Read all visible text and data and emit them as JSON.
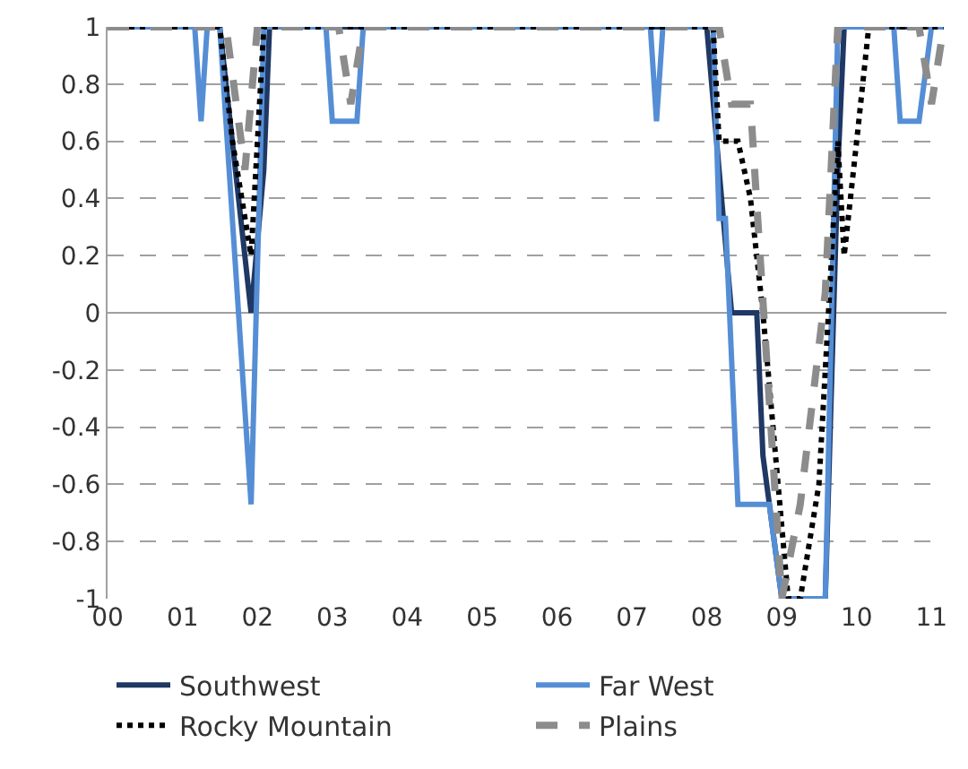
{
  "chart_data": {
    "type": "line",
    "xlim": [
      "2000-01-01",
      "2011-03-15"
    ],
    "xticks": [
      {
        "value": "2000-01",
        "label": "00"
      },
      {
        "value": "2001-01",
        "label": "01"
      },
      {
        "value": "2002-01",
        "label": "02"
      },
      {
        "value": "2003-01",
        "label": "03"
      },
      {
        "value": "2004-01",
        "label": "04"
      },
      {
        "value": "2005-01",
        "label": "05"
      },
      {
        "value": "2006-01",
        "label": "06"
      },
      {
        "value": "2007-01",
        "label": "07"
      },
      {
        "value": "2008-01",
        "label": "08"
      },
      {
        "value": "2009-01",
        "label": "09"
      },
      {
        "value": "2010-01",
        "label": "10"
      },
      {
        "value": "2011-01",
        "label": "11"
      }
    ],
    "ylim": [
      -1,
      1
    ],
    "yticks": [
      -1,
      -0.8,
      -0.6,
      -0.4,
      -0.2,
      0,
      0.2,
      0.4,
      0.6,
      0.8,
      1
    ],
    "grid": "y",
    "legend": "bottom",
    "series": [
      {
        "name": "Southwest",
        "color": "#1f3864",
        "line_style": "solid",
        "x": [
          "2000-01",
          "2001-07",
          "2001-12",
          "2002-02",
          "2002-03",
          "2008-01",
          "2008-03",
          "2008-05",
          "2008-09",
          "2008-10",
          "2009-01",
          "2009-08",
          "2009-10",
          "2009-11",
          "2011-03"
        ],
        "values": [
          1,
          1,
          0,
          0.5,
          1,
          1,
          0.5,
          0,
          0,
          -0.5,
          -1,
          -1,
          0.5,
          1,
          1
        ]
      },
      {
        "name": "Far West",
        "color": "#558ed5",
        "line_style": "solid",
        "x": [
          "2000-01",
          "2001-03",
          "2001-04",
          "2001-05",
          "2001-07",
          "2001-12",
          "2002-02",
          "2002-12",
          "2003-01",
          "2003-05",
          "2003-06",
          "2007-04",
          "2007-05",
          "2007-06",
          "2008-02",
          "2008-03",
          "2008-04",
          "2008-06",
          "2008-11",
          "2009-01",
          "2009-08",
          "2009-10",
          "2010-07",
          "2010-08",
          "2010-11",
          "2011-01",
          "2011-03"
        ],
        "values": [
          1,
          1,
          0.67,
          1,
          1,
          -0.67,
          1,
          1,
          0.67,
          0.67,
          1,
          1,
          0.67,
          1,
          1,
          0.33,
          0.33,
          -0.67,
          -0.67,
          -1,
          -1,
          1,
          1,
          0.67,
          0.67,
          1,
          1
        ]
      },
      {
        "name": "Rocky Mountain",
        "color": "#000000",
        "line_style": "dotted",
        "x": [
          "2000-01",
          "2001-07",
          "2001-09",
          "2001-12",
          "2002-02",
          "2008-02",
          "2008-03",
          "2008-06",
          "2008-08",
          "2008-10",
          "2009-02",
          "2009-04",
          "2009-07",
          "2009-09",
          "2009-10",
          "2009-11",
          "2010-01",
          "2010-03",
          "2011-03"
        ],
        "values": [
          1,
          1,
          0.6,
          0.2,
          1,
          1,
          0.6,
          0.6,
          0.4,
          0,
          -1,
          -1,
          -0.6,
          0.2,
          0.6,
          0.2,
          0.6,
          1,
          1
        ]
      },
      {
        "name": "Plains",
        "color": "#8c8c8c",
        "line_style": "dashed",
        "x": [
          "2000-01",
          "2001-08",
          "2001-11",
          "2002-01",
          "2003-02",
          "2003-04",
          "2003-06",
          "2008-03",
          "2008-05",
          "2008-08",
          "2009-01",
          "2009-04",
          "2009-08",
          "2009-10",
          "2010-11",
          "2011-01",
          "2011-03"
        ],
        "values": [
          1,
          1,
          0.5,
          1,
          1,
          0.73,
          1,
          1,
          0.73,
          0.73,
          -1,
          -0.67,
          0.07,
          1,
          1,
          0.73,
          1
        ]
      }
    ]
  }
}
